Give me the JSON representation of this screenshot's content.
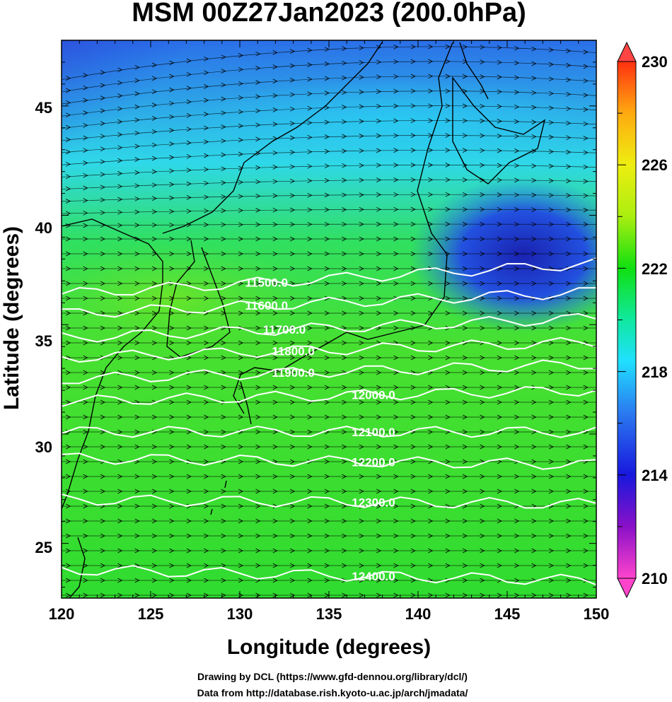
{
  "title": "MSM 00Z27Jan2023 (200.0hPa)",
  "x_axis": {
    "label": "Longitude (degrees)",
    "ticks": [
      "120",
      "125",
      "130",
      "135",
      "140",
      "145",
      "150"
    ]
  },
  "y_axis": {
    "label": "Latitude  (degrees)",
    "ticks": [
      "25",
      "30",
      "35",
      "40",
      "45"
    ]
  },
  "colorbar": {
    "ticks": [
      "210",
      "214",
      "218",
      "222",
      "226",
      "230"
    ],
    "colors": [
      "#ff44cc",
      "#8a10c8",
      "#1818dd",
      "#2a7af0",
      "#20e0ff",
      "#10e8a0",
      "#10e010",
      "#aaee10",
      "#eeee10",
      "#ffaa10",
      "#ff3010"
    ]
  },
  "contours": [
    {
      "label": "11500.0",
      "lat_west": 36.4,
      "lat_east": 37.8
    },
    {
      "label": "11600.0",
      "lat_west": 35.5,
      "lat_east": 36.5
    },
    {
      "label": "11700.0",
      "lat_west": 34.4,
      "lat_east": 35.3
    },
    {
      "label": "11800.0",
      "lat_west": 33.5,
      "lat_east": 34.2
    },
    {
      "label": "11900.0",
      "lat_west": 32.5,
      "lat_east": 33.2
    },
    {
      "label": "12000.0",
      "lat_west": 31.5,
      "lat_east": 32.0
    },
    {
      "label": "12100.0",
      "lat_west": 30.1,
      "lat_east": 30.1
    },
    {
      "label": "12200.0",
      "lat_west": 28.9,
      "lat_east": 28.6
    },
    {
      "label": "12300.0",
      "lat_west": 27.0,
      "lat_east": 26.8
    },
    {
      "label": "12400.0",
      "lat_west": 23.8,
      "lat_east": 23.3
    }
  ],
  "credits": [
    "Drawing by DCL (https://www.gfd-dennou.org/library/dcl/)",
    "Data from http://database.rish.kyoto-u.ac.jp/arch/jmadata/"
  ]
}
